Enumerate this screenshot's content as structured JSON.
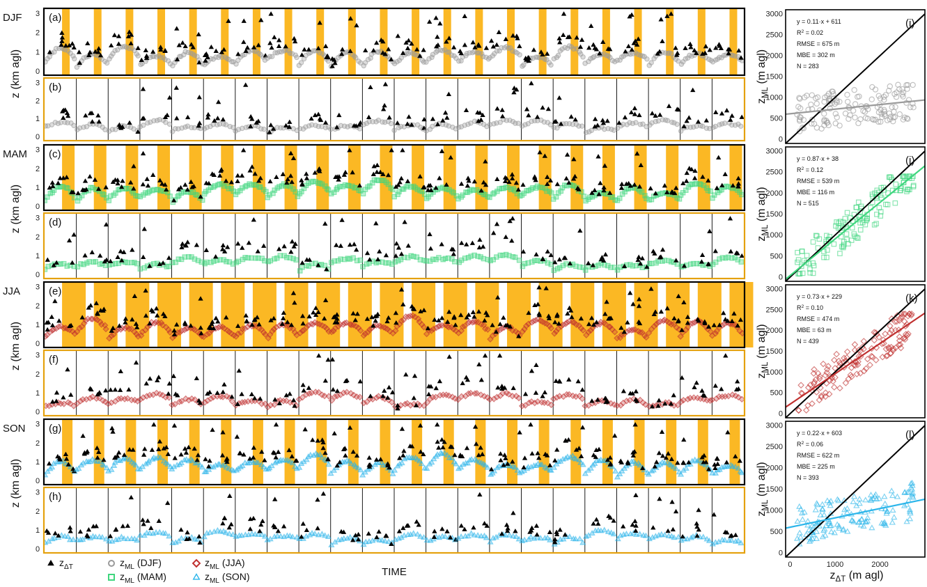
{
  "chart_data": {
    "type": "scatter",
    "x_axis_label": "TIME",
    "y_axis_label": "z (km agl)",
    "y_ticks": [
      "0",
      "1",
      "2",
      "3"
    ],
    "scatter_axes": {
      "x_label": "zΔT (m agl)",
      "y_label": "zML (m agl)",
      "x_ticks": [
        "0",
        "1000",
        "2000"
      ],
      "y_ticks": [
        "0",
        "500",
        "1000",
        "1500",
        "2000",
        "2500",
        "3000"
      ],
      "x_range": [
        -100,
        3000
      ],
      "y_range": [
        -100,
        3100
      ]
    },
    "legend": [
      {
        "symbol": "triangle",
        "color": "#000000",
        "label": "zΔT"
      },
      {
        "symbol": "circle",
        "color": "#9a9a9a",
        "label": "zML (DJF)"
      },
      {
        "symbol": "diamond",
        "color": "#c0302f",
        "label": "zML (JJA)"
      },
      {
        "symbol": "square",
        "color": "#3fd67e",
        "label": "zML (MAM)"
      },
      {
        "symbol": "triangle",
        "color": "#2bb5ea",
        "label": "zML (SON)"
      }
    ],
    "colors": {
      "night_band": "#fbb824",
      "frame_border": "#e5a10e",
      "identity_line": "#000000",
      "timeseries_marker": "#000000"
    },
    "seasons": [
      {
        "name": "DJF",
        "color": "#9a9a9a",
        "panel_top": "(a)",
        "panel_bottom": "(b)",
        "panel_scatter": "(i)",
        "fit": {
          "slope": 0.11,
          "intercept": 611
        },
        "fit_text": "y = 0.11·x + 611",
        "r2": "0.02",
        "rmse": "RMSE = 675 m",
        "mbe": "MBE = 302 m",
        "n": "N = 283"
      },
      {
        "name": "MAM",
        "color": "#3fd67e",
        "panel_top": "(c)",
        "panel_bottom": "(d)",
        "panel_scatter": "(j)",
        "fit": {
          "slope": 0.87,
          "intercept": 38
        },
        "fit_text": "y = 0.87·x + 38",
        "r2": "0.12",
        "rmse": "RMSE = 539 m",
        "mbe": "MBE = 116 m",
        "n": "N = 515"
      },
      {
        "name": "JJA",
        "color": "#c0302f",
        "panel_top": "(e)",
        "panel_bottom": "(f)",
        "panel_scatter": "(k)",
        "fit": {
          "slope": 0.73,
          "intercept": 229
        },
        "fit_text": "y = 0.73·x + 229",
        "r2": "0.10",
        "rmse": "RMSE = 474 m",
        "mbe": "MBE = 63 m",
        "n": "N = 439"
      },
      {
        "name": "SON",
        "color": "#2bb5ea",
        "panel_top": "(g)",
        "panel_bottom": "(h)",
        "panel_scatter": "(l)",
        "fit": {
          "slope": 0.22,
          "intercept": 603
        },
        "fit_text": "y = 0.22·x + 603",
        "r2": "0.06",
        "rmse": "RMSE = 622 m",
        "mbe": "MBE = 225 m",
        "n": "N = 393"
      }
    ]
  }
}
